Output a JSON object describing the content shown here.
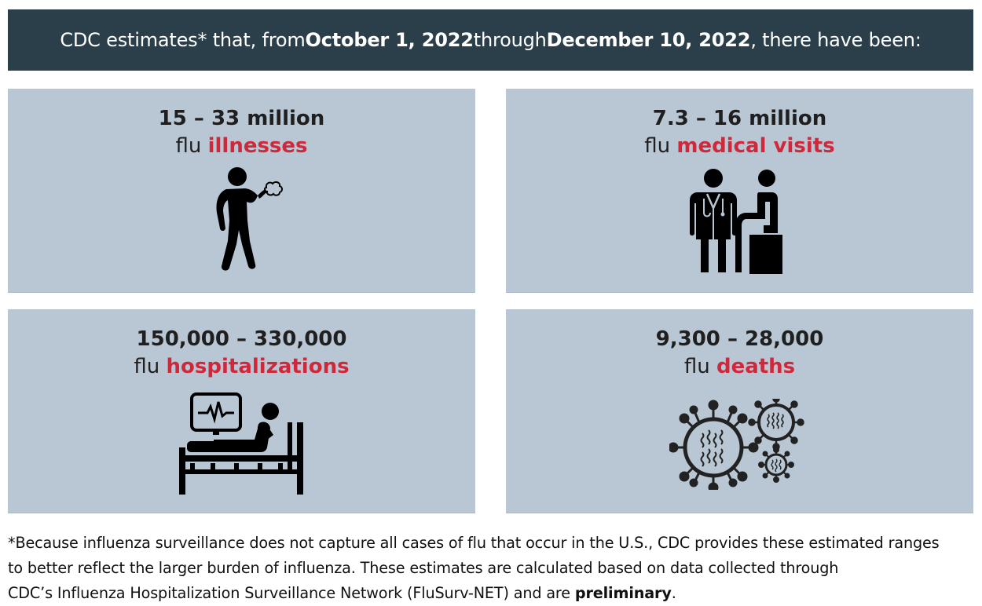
{
  "banner": {
    "prefix": "CDC estimates* that, from ",
    "start_date": "October 1, 2022",
    "middle": " through ",
    "end_date": "December 10, 2022",
    "suffix": ", there have been:"
  },
  "cards": [
    {
      "range": "15 – 33 million",
      "word": "flu ",
      "highlight": "illnesses",
      "icon": "sick-person-coughing-icon"
    },
    {
      "range": "7.3 – 16 million",
      "word": "flu ",
      "highlight": "medical visits",
      "icon": "doctor-and-patient-icon"
    },
    {
      "range": "150,000 – 330,000",
      "word": "flu ",
      "highlight": "hospitalizations",
      "icon": "hospital-bed-monitor-icon"
    },
    {
      "range": "9,300 – 28,000",
      "word": "flu ",
      "highlight": "deaths",
      "icon": "virus-particles-icon"
    }
  ],
  "footnote": {
    "line1": "*Because influenza surveillance does not capture all cases of flu that occur in the U.S., CDC provides these estimated ranges",
    "line2": "to better reflect the larger burden of influenza. These estimates are calculated based on data collected through",
    "line3_prefix": "CDC’s Influenza Hospitalization Surveillance Network (FluSurv-NET) and are ",
    "line3_bold": "preliminary",
    "line3_suffix": "."
  },
  "colors": {
    "banner_bg": "#2b3f4a",
    "card_bg": "#b8c7d3",
    "highlight": "#d0283b"
  }
}
